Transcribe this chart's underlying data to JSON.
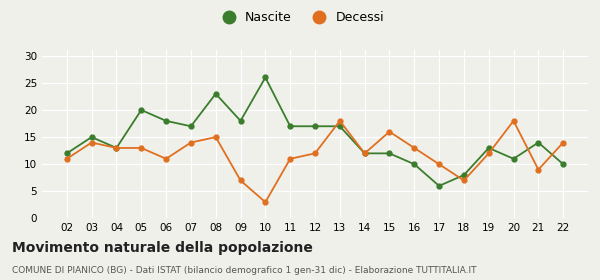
{
  "years": [
    "02",
    "03",
    "04",
    "05",
    "06",
    "07",
    "08",
    "09",
    "10",
    "11",
    "12",
    "13",
    "14",
    "15",
    "16",
    "17",
    "18",
    "19",
    "20",
    "21",
    "22"
  ],
  "nascite": [
    12,
    15,
    13,
    20,
    18,
    17,
    23,
    18,
    26,
    17,
    17,
    17,
    12,
    12,
    10,
    6,
    8,
    13,
    11,
    14,
    10
  ],
  "decessi": [
    11,
    14,
    13,
    13,
    11,
    14,
    15,
    7,
    3,
    11,
    12,
    18,
    12,
    16,
    13,
    10,
    7,
    12,
    18,
    9,
    14
  ],
  "nascite_color": "#3a7d2c",
  "decessi_color": "#e07020",
  "background_color": "#f0f0eb",
  "grid_color": "#ffffff",
  "title": "Movimento naturale della popolazione",
  "subtitle": "COMUNE DI PIANICO (BG) - Dati ISTAT (bilancio demografico 1 gen-31 dic) - Elaborazione TUTTITALIA.IT",
  "ylabel_ticks": [
    0,
    5,
    10,
    15,
    20,
    25,
    30
  ],
  "ylim": [
    0,
    31
  ],
  "legend_labels": [
    "Nascite",
    "Decessi"
  ]
}
